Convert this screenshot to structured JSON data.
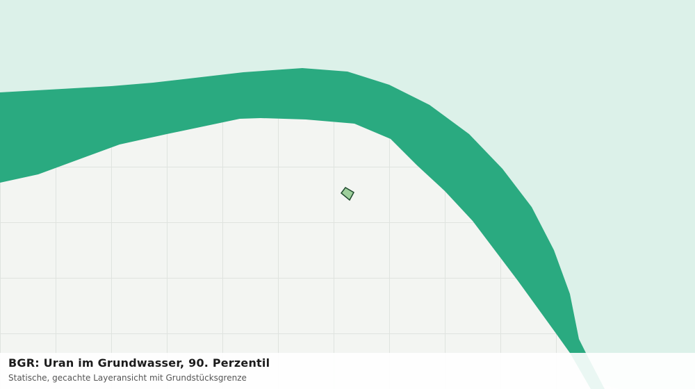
{
  "header": {
    "title": "BGR: Uran im Grundwasser, 90. Perzentil",
    "subtitle": "Statische, gecachte Layeransicht mit Grundstücksgrenze"
  }
}
